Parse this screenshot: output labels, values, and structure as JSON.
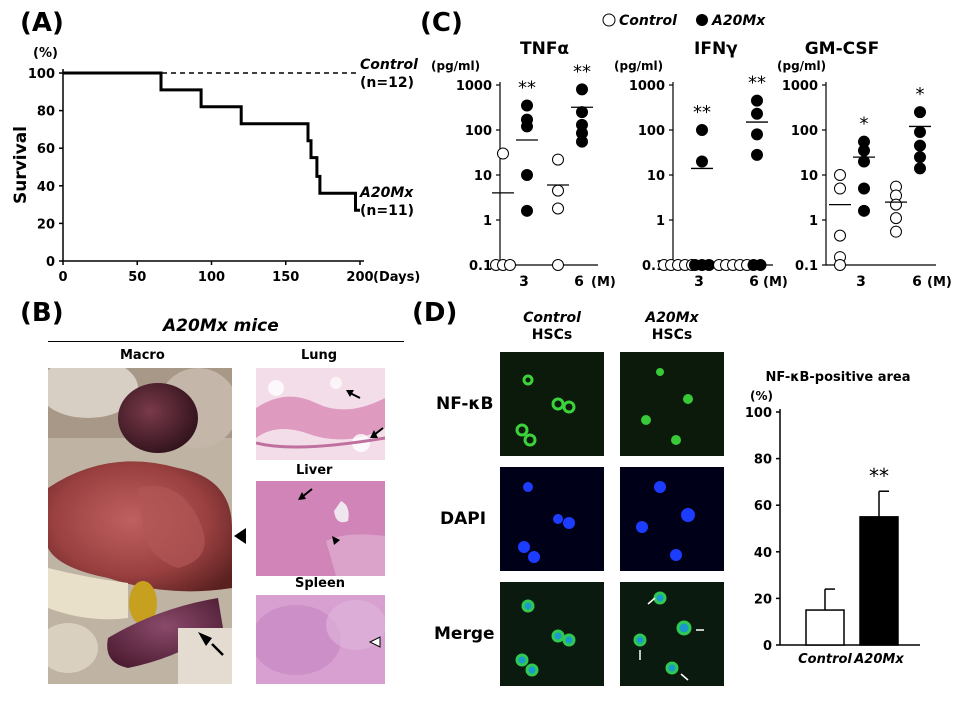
{
  "panel_a": {
    "label": "(A)",
    "y_unit": "(%)",
    "y_label": "Survival",
    "x_unit": "(Days)",
    "control_label": "Control",
    "control_n": "(n=12)",
    "mutant_label": "A20Mx",
    "mutant_n": "(n=11)"
  },
  "panel_b": {
    "label": "(B)",
    "title": "A20Mx mice",
    "macro": "Macro",
    "lung": "Lung",
    "liver": "Liver",
    "spleen": "Spleen"
  },
  "panel_c": {
    "label": "(C)",
    "legend_control": "Control",
    "legend_mutant": "A20Mx",
    "unit": "(pg/ml)",
    "month_unit": "(M)",
    "tnf_title": "TNFα",
    "ifn_title": "IFNγ",
    "gm_title": "GM-CSF"
  },
  "panel_d": {
    "label": "(D)",
    "col1_line1": "Control",
    "col1_line2": "HSCs",
    "col2_line1": "A20Mx",
    "col2_line2": "HSCs",
    "row1": "NF-κB",
    "row2": "DAPI",
    "row3": "Merge",
    "bar_title": "NF-κB-positive area",
    "bar_unit": "(%)"
  },
  "chart_data": [
    {
      "type": "line",
      "panel": "A",
      "xlabel": "(Days)",
      "ylabel": "Survival",
      "xlim": [
        0,
        200
      ],
      "ylim": [
        0,
        100
      ],
      "x_ticks": [
        0,
        50,
        100,
        150,
        200
      ],
      "y_ticks": [
        0,
        20,
        40,
        60,
        80,
        100
      ],
      "series": [
        {
          "name": "Control",
          "style": "dashed",
          "steps": [
            [
              0,
              100
            ],
            [
              200,
              100
            ]
          ]
        },
        {
          "name": "A20Mx",
          "style": "solid",
          "steps": [
            [
              0,
              100
            ],
            [
              66,
              100
            ],
            [
              66,
              91
            ],
            [
              93,
              91
            ],
            [
              93,
              82
            ],
            [
              120,
              82
            ],
            [
              120,
              73
            ],
            [
              165,
              73
            ],
            [
              165,
              64
            ],
            [
              167,
              64
            ],
            [
              167,
              55
            ],
            [
              171,
              55
            ],
            [
              171,
              45
            ],
            [
              173,
              45
            ],
            [
              173,
              36
            ],
            [
              197,
              36
            ],
            [
              197,
              27
            ],
            [
              200,
              27
            ]
          ]
        }
      ],
      "colors": {
        "line": "#000000"
      }
    },
    {
      "type": "scatter",
      "panel": "C",
      "title": "TNFα",
      "ylabel": "(pg/ml)",
      "yscale": "log",
      "ylim": [
        0.1,
        1000
      ],
      "y_ticks": [
        "0.1",
        "1",
        "10",
        "100",
        "1000"
      ],
      "categories": [
        "3",
        "6"
      ],
      "groups": [
        {
          "month": "3",
          "series": "Control",
          "values": [
            30,
            0.1,
            0.1,
            0.1
          ],
          "mean": 4
        },
        {
          "month": "3",
          "series": "A20Mx",
          "values": [
            350,
            170,
            120,
            10,
            1.6
          ],
          "mean": 60,
          "mark": "**"
        },
        {
          "month": "6",
          "series": "Control",
          "values": [
            22,
            4.5,
            1.8,
            0.1
          ],
          "mean": 6
        },
        {
          "month": "6",
          "series": "A20Mx",
          "values": [
            800,
            250,
            130,
            85,
            55
          ],
          "mean": 320,
          "mark": "**"
        }
      ]
    },
    {
      "type": "scatter",
      "panel": "C",
      "title": "IFNγ",
      "ylabel": "(pg/ml)",
      "yscale": "log",
      "ylim": [
        0.1,
        1000
      ],
      "y_ticks": [
        "0.1",
        "1",
        "10",
        "100",
        "1000"
      ],
      "categories": [
        "3",
        "6"
      ],
      "groups": [
        {
          "month": "3",
          "series": "Control",
          "values": [
            0.1,
            0.1,
            0.1,
            0.1,
            0.1
          ],
          "mean": null
        },
        {
          "month": "3",
          "series": "A20Mx",
          "values": [
            100,
            20,
            0.1,
            0.1,
            0.1
          ],
          "mean": 14,
          "mark": "**"
        },
        {
          "month": "6",
          "series": "Control",
          "values": [
            0.1,
            0.1,
            0.1,
            0.1,
            0.1
          ],
          "mean": null
        },
        {
          "month": "6",
          "series": "A20Mx",
          "values": [
            450,
            230,
            80,
            28,
            0.1,
            0.1
          ],
          "mean": 150,
          "mark": "**"
        }
      ]
    },
    {
      "type": "scatter",
      "panel": "C",
      "title": "GM-CSF",
      "ylabel": "(pg/ml)",
      "yscale": "log",
      "ylim": [
        0.1,
        1000
      ],
      "y_ticks": [
        "0.1",
        "1",
        "10",
        "100",
        "1000"
      ],
      "categories": [
        "3",
        "6"
      ],
      "groups": [
        {
          "month": "3",
          "series": "Control",
          "values": [
            10,
            5,
            0.45,
            0.15,
            0.1
          ],
          "mean": 2.2
        },
        {
          "month": "3",
          "series": "A20Mx",
          "values": [
            55,
            35,
            20,
            5,
            1.6
          ],
          "mean": 25,
          "mark": "*"
        },
        {
          "month": "6",
          "series": "Control",
          "values": [
            5.5,
            3.5,
            2.2,
            1.1,
            0.55
          ],
          "mean": 2.5
        },
        {
          "month": "6",
          "series": "A20Mx",
          "values": [
            250,
            90,
            45,
            25,
            14
          ],
          "mean": 120,
          "mark": "*"
        }
      ]
    },
    {
      "type": "bar",
      "panel": "D",
      "title": "NF-κB-positive area",
      "ylabel": "(%)",
      "ylim": [
        0,
        100
      ],
      "y_ticks": [
        0,
        20,
        40,
        60,
        80,
        100
      ],
      "categories": [
        "Control",
        "A20Mx"
      ],
      "values": [
        15,
        55
      ],
      "errors": [
        9,
        11
      ],
      "annotation": "**",
      "colors": {
        "Control": "#ffffff",
        "A20Mx": "#000000"
      }
    }
  ]
}
